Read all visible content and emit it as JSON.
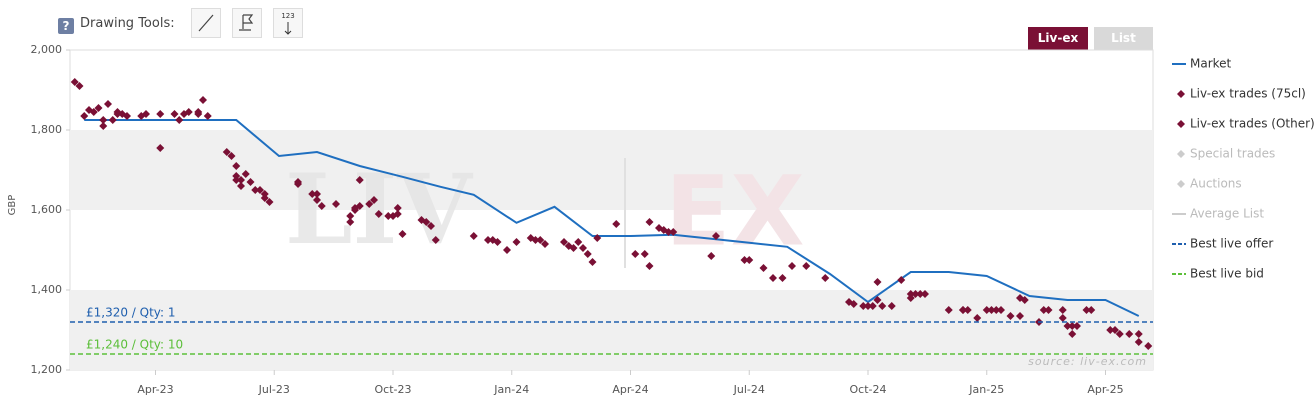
{
  "toolbar": {
    "help": "?",
    "label": "Drawing Tools:",
    "icon_text": "123",
    "buttons": [
      "Liv-ex",
      "List"
    ]
  },
  "chart_data": {
    "type": "scatter",
    "ylabel": "GBP",
    "watermark": [
      "LIV",
      "EX"
    ],
    "source": "source: liv-ex.com",
    "xlim": [
      2023.07,
      2025.35
    ],
    "ylim": [
      1200,
      2000
    ],
    "xticks": [
      {
        "value": 2023.25,
        "label": "Apr-23"
      },
      {
        "value": 2023.5,
        "label": "Jul-23"
      },
      {
        "value": 2023.75,
        "label": "Oct-23"
      },
      {
        "value": 2024.0,
        "label": "Jan-24"
      },
      {
        "value": 2024.25,
        "label": "Apr-24"
      },
      {
        "value": 2024.5,
        "label": "Jul-24"
      },
      {
        "value": 2024.75,
        "label": "Oct-24"
      },
      {
        "value": 2025.0,
        "label": "Jan-25"
      },
      {
        "value": 2025.25,
        "label": "Apr-25"
      }
    ],
    "yticks": [
      {
        "value": 1200,
        "label": "1,200"
      },
      {
        "value": 1400,
        "label": "1,400"
      },
      {
        "value": 1600,
        "label": "1,600"
      },
      {
        "value": 1800,
        "label": "1,800"
      },
      {
        "value": 2000,
        "label": "2,000"
      }
    ],
    "alternate_bands": true,
    "band_color": "#f0f0f0",
    "series": [
      {
        "name": "Market",
        "type": "line",
        "color": "#1f6fc0",
        "x": [
          2023.1,
          2023.42,
          2023.51,
          2023.59,
          2023.68,
          2023.77,
          2023.85,
          2023.92,
          2024.01,
          2024.09,
          2024.17,
          2024.25,
          2024.34,
          2024.42,
          2024.5,
          2024.58,
          2024.67,
          2024.75,
          2024.84,
          2024.92,
          2025.0,
          2025.09,
          2025.17,
          2025.25,
          2025.32
        ],
        "values": [
          1825,
          1825,
          1735,
          1745,
          1710,
          1683,
          1658,
          1638,
          1568,
          1608,
          1535,
          1535,
          1538,
          1528,
          1518,
          1508,
          1440,
          1370,
          1445,
          1445,
          1435,
          1385,
          1375,
          1375,
          1335
        ]
      },
      {
        "name": "Liv-ex trades (75cl)",
        "type": "scatter",
        "color": "#7a1035",
        "x": [
          2023.08,
          2023.09,
          2023.1,
          2023.11,
          2023.12,
          2023.13,
          2023.14,
          2023.14,
          2023.15,
          2023.16,
          2023.17,
          2023.17,
          2023.18,
          2023.19,
          2023.22,
          2023.23,
          2023.26,
          2023.26,
          2023.29,
          2023.3,
          2023.31,
          2023.32,
          2023.34,
          2023.34,
          2023.35,
          2023.36,
          2023.4,
          2023.41,
          2023.42,
          2023.42,
          2023.42,
          2023.43,
          2023.43,
          2023.44,
          2023.45,
          2023.46,
          2023.47,
          2023.48,
          2023.48,
          2023.49,
          2023.55,
          2023.55,
          2023.58,
          2023.59,
          2023.59,
          2023.6,
          2023.63,
          2023.66,
          2023.66,
          2023.67,
          2023.67,
          2023.68,
          2023.68,
          2023.7,
          2023.71,
          2023.72,
          2023.74,
          2023.75,
          2023.76,
          2023.76,
          2023.77,
          2023.81,
          2023.82,
          2023.83,
          2023.84,
          2023.92,
          2023.95,
          2023.96,
          2023.97,
          2023.99,
          2024.01,
          2024.04,
          2024.05,
          2024.06,
          2024.07,
          2024.11,
          2024.12,
          2024.13,
          2024.14,
          2024.15,
          2024.16,
          2024.17,
          2024.18,
          2024.22,
          2024.26,
          2024.28,
          2024.29,
          2024.29,
          2024.31,
          2024.32,
          2024.33,
          2024.34,
          2024.42,
          2024.43,
          2024.49,
          2024.5,
          2024.53,
          2024.55,
          2024.57,
          2024.59,
          2024.62,
          2024.66,
          2024.71,
          2024.72,
          2024.74,
          2024.75,
          2024.76,
          2024.77,
          2024.77,
          2024.78,
          2024.8,
          2024.82,
          2024.84,
          2024.84,
          2024.85,
          2024.86,
          2024.87,
          2024.92,
          2024.95,
          2024.95,
          2024.96,
          2024.98,
          2025.0,
          2025.01,
          2025.02,
          2025.03,
          2025.05,
          2025.07,
          2025.07,
          2025.08,
          2025.11,
          2025.12,
          2025.13,
          2025.16,
          2025.16,
          2025.17,
          2025.18,
          2025.18,
          2025.19,
          2025.21,
          2025.22,
          2025.26,
          2025.27,
          2025.28,
          2025.3,
          2025.32,
          2025.32,
          2025.34
        ],
        "values": [
          1920,
          1910,
          1835,
          1850,
          1845,
          1855,
          1825,
          1810,
          1865,
          1825,
          1845,
          1840,
          1840,
          1835,
          1835,
          1840,
          1755,
          1840,
          1840,
          1825,
          1840,
          1845,
          1840,
          1845,
          1875,
          1835,
          1745,
          1735,
          1710,
          1685,
          1675,
          1660,
          1675,
          1690,
          1670,
          1650,
          1650,
          1640,
          1630,
          1620,
          1670,
          1665,
          1640,
          1640,
          1625,
          1610,
          1615,
          1585,
          1570,
          1600,
          1605,
          1675,
          1610,
          1615,
          1625,
          1590,
          1585,
          1585,
          1590,
          1605,
          1540,
          1575,
          1570,
          1560,
          1525,
          1535,
          1525,
          1525,
          1520,
          1500,
          1520,
          1530,
          1525,
          1525,
          1515,
          1520,
          1510,
          1505,
          1520,
          1505,
          1490,
          1470,
          1530,
          1565,
          1490,
          1490,
          1460,
          1570,
          1555,
          1550,
          1545,
          1545,
          1485,
          1535,
          1475,
          1475,
          1455,
          1430,
          1430,
          1460,
          1460,
          1430,
          1370,
          1365,
          1360,
          1360,
          1360,
          1420,
          1375,
          1360,
          1360,
          1425,
          1390,
          1380,
          1390,
          1390,
          1390,
          1350,
          1350,
          1350,
          1350,
          1330,
          1350,
          1350,
          1350,
          1350,
          1335,
          1335,
          1380,
          1375,
          1320,
          1350,
          1350,
          1350,
          1330,
          1310,
          1290,
          1310,
          1310,
          1350,
          1350,
          1300,
          1300,
          1290,
          1290,
          1290,
          1270,
          1260
        ]
      },
      {
        "name": "Liv-ex trades (Other)",
        "type": "scatter",
        "color": "#7a1035",
        "x": [],
        "values": []
      },
      {
        "name": "Special trades",
        "type": "scatter",
        "color": "#cccccc",
        "hidden": true,
        "x": [],
        "values": []
      },
      {
        "name": "Auctions",
        "type": "scatter",
        "color": "#cccccc",
        "hidden": true,
        "x": [],
        "values": []
      },
      {
        "name": "Average List",
        "type": "line",
        "color": "#cccccc",
        "hidden": true,
        "x": [],
        "values": []
      },
      {
        "name": "Best live offer",
        "type": "hline",
        "color": "#1f5fae",
        "values": [
          1320
        ],
        "value_labels": [
          "£1,320 / Qty: 1"
        ]
      },
      {
        "name": "Best live bid",
        "type": "hline",
        "color": "#5cbf3a",
        "values": [
          1240
        ],
        "value_labels": [
          "£1,240 / Qty: 10"
        ]
      }
    ]
  }
}
